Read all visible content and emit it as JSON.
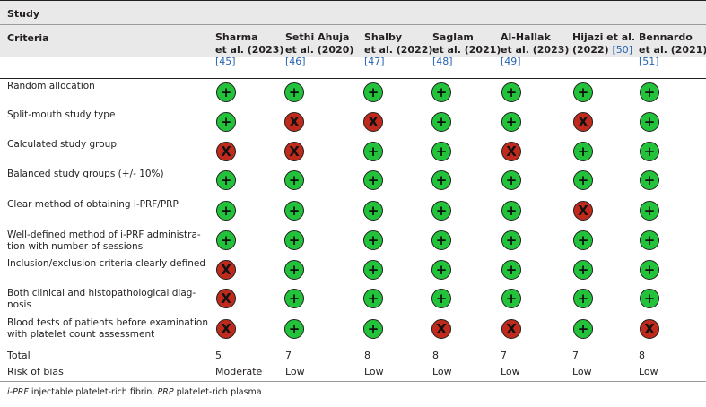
{
  "table": {
    "group_header": "Study",
    "criteria_header": "Criteria",
    "studies": [
      {
        "lines": [
          "Sharma",
          "et al. (2023)"
        ],
        "ref": "[45]"
      },
      {
        "lines": [
          "Sethi Ahuja",
          "et al. (2020)"
        ],
        "ref": "[46]"
      },
      {
        "lines": [
          "Shalby",
          "et al. (2022)"
        ],
        "ref": "[47]"
      },
      {
        "lines": [
          "Saglam",
          "et al. (2021)"
        ],
        "ref": "[48]"
      },
      {
        "lines": [
          "Al-Hallak",
          "et al. (2023)"
        ],
        "ref": "[49]"
      },
      {
        "lines": [
          "Hijazi et al.",
          "(2022)"
        ],
        "ref": "[50]"
      },
      {
        "lines": [
          "Bennardo",
          "et al. (2021)"
        ],
        "ref": "[51]"
      }
    ],
    "legend": {
      "plus": "+",
      "cross": "X"
    },
    "rows": [
      {
        "criterion": [
          "Random allocation"
        ],
        "marks": [
          "+",
          "+",
          "+",
          "+",
          "+",
          "+",
          "+"
        ]
      },
      {
        "criterion": [
          "Split-mouth study type"
        ],
        "marks": [
          "+",
          "X",
          "X",
          "+",
          "+",
          "X",
          "+"
        ]
      },
      {
        "criterion": [
          "Calculated study group"
        ],
        "marks": [
          "X",
          "X",
          "+",
          "+",
          "X",
          "+",
          "+"
        ]
      },
      {
        "criterion": [
          "Balanced study groups (+/- 10%)"
        ],
        "marks": [
          "+",
          "+",
          "+",
          "+",
          "+",
          "+",
          "+"
        ]
      },
      {
        "criterion": [
          "Clear method of obtaining i-PRF/PRP"
        ],
        "marks": [
          "+",
          "+",
          "+",
          "+",
          "+",
          "X",
          "+"
        ]
      },
      {
        "criterion": [
          "Well-defined method of i-PRF administra-",
          "tion with number of sessions"
        ],
        "marks": [
          "+",
          "+",
          "+",
          "+",
          "+",
          "+",
          "+"
        ]
      },
      {
        "criterion": [
          "Inclusion/exclusion criteria clearly defined"
        ],
        "marks": [
          "X",
          "+",
          "+",
          "+",
          "+",
          "+",
          "+"
        ]
      },
      {
        "criterion": [
          "Both clinical and histopathological diag-",
          "nosis"
        ],
        "marks": [
          "X",
          "+",
          "+",
          "+",
          "+",
          "+",
          "+"
        ]
      },
      {
        "criterion": [
          "Blood tests of patients before examination",
          "with platelet count assessment"
        ],
        "marks": [
          "X",
          "+",
          "+",
          "X",
          "X",
          "+",
          "X"
        ]
      }
    ],
    "total_label": "Total",
    "totals": [
      "5",
      "7",
      "8",
      "8",
      "7",
      "7",
      "8"
    ],
    "risk_label": "Risk of bias",
    "risks": [
      "Moderate",
      "Low",
      "Low",
      "Low",
      "Low",
      "Low",
      "Low"
    ]
  },
  "footnote": {
    "abbr1": "i-PRF",
    "def1": " injectable platelet-rich fibrin, ",
    "abbr2": "PRP",
    "def2": " platelet-rich plasma"
  },
  "colors": {
    "plus": "#22c33a",
    "cross": "#bf2a1c",
    "header_band": "#e9e9ea",
    "link": "#2563b0"
  }
}
